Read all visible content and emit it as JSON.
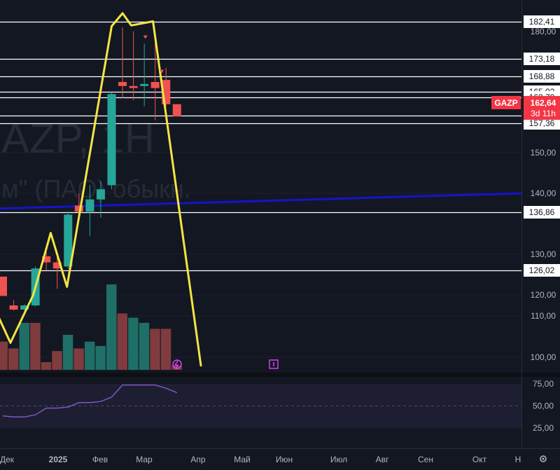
{
  "watermark": {
    "line1": "AZP, 1H",
    "line2": "м\" (ПАО) обыкн."
  },
  "symbol": {
    "ticker": "GAZP",
    "last_price": "162,64",
    "countdown": "3d 11h"
  },
  "colors": {
    "background": "#131722",
    "up": "#26a69a",
    "down": "#ef5350",
    "up_volume": "#1f6f67",
    "down_volume": "#7f3b3e",
    "horizontal_line": "#ffffff",
    "trend_line": "#1414cc",
    "drawing": "#f4e542",
    "rsi": "#7e57c2",
    "last_price_badge": "#f23645",
    "axis_text": "#b2b5be"
  },
  "chart_data": {
    "type": "candlestick",
    "x_axis_labels": [
      "Дек",
      "2025",
      "Фев",
      "Мар",
      "Апр",
      "Май",
      "Июн",
      "Июл",
      "Авг",
      "Сен",
      "Окт",
      "Н"
    ],
    "price_axis_ticks": [
      "180,00",
      "150,00",
      "140,00",
      "130,00",
      "120,00",
      "110,00",
      "100,00"
    ],
    "horizontal_levels": [
      "182,41",
      "173,18",
      "168,88",
      "165,02",
      "163,70",
      "159,12",
      "157,36",
      "136,86",
      "126,02"
    ],
    "trend_line": {
      "start": 137.5,
      "end": 140.0
    },
    "candles": [
      {
        "open": 124.5,
        "high": 124.5,
        "low": 119.5,
        "close": 119.5
      },
      {
        "open": 115.0,
        "high": 117.5,
        "low": 112.5,
        "close": 113.0
      },
      {
        "open": 113.0,
        "high": 115.5,
        "low": 110.5,
        "close": 115.0
      },
      {
        "open": 115.0,
        "high": 127.0,
        "low": 114.5,
        "close": 126.5
      },
      {
        "open": 129.5,
        "high": 130.5,
        "low": 126.0,
        "close": 128.0
      },
      {
        "open": 128.0,
        "high": 129.5,
        "low": 121.5,
        "close": 126.5
      },
      {
        "open": 127.0,
        "high": 137.0,
        "low": 126.5,
        "close": 136.5
      },
      {
        "open": 138.0,
        "high": 140.0,
        "low": 137.0,
        "close": 137.0
      },
      {
        "open": 137.0,
        "high": 142.0,
        "low": 133.0,
        "close": 139.0
      },
      {
        "open": 139.0,
        "high": 143.0,
        "low": 136.0,
        "close": 141.0
      },
      {
        "open": 142.0,
        "high": 165.0,
        "low": 141.0,
        "close": 164.5
      },
      {
        "open": 167.5,
        "high": 181.0,
        "low": 163.5,
        "close": 166.5
      },
      {
        "open": 166.5,
        "high": 180.0,
        "low": 163.0,
        "close": 166.0
      },
      {
        "open": 166.5,
        "high": 177.0,
        "low": 161.5,
        "close": 167.0
      },
      {
        "open": 167.5,
        "high": 178.0,
        "low": 158.0,
        "close": 166.0
      },
      {
        "open": 168.0,
        "high": 171.0,
        "low": 161.5,
        "close": 162.0
      },
      {
        "open": 162.0,
        "high": 162.0,
        "low": 159.0,
        "close": 159.0
      }
    ],
    "volume": [
      {
        "value": 0.33,
        "dir": "down"
      },
      {
        "value": 0.25,
        "dir": "down"
      },
      {
        "value": 0.55,
        "dir": "up"
      },
      {
        "value": 0.55,
        "dir": "down"
      },
      {
        "value": 0.09,
        "dir": "down"
      },
      {
        "value": 0.22,
        "dir": "down"
      },
      {
        "value": 0.41,
        "dir": "up"
      },
      {
        "value": 0.25,
        "dir": "down"
      },
      {
        "value": 0.33,
        "dir": "up"
      },
      {
        "value": 0.28,
        "dir": "up"
      },
      {
        "value": 1.0,
        "dir": "up"
      },
      {
        "value": 0.66,
        "dir": "down"
      },
      {
        "value": 0.61,
        "dir": "up"
      },
      {
        "value": 0.55,
        "dir": "up"
      },
      {
        "value": 0.48,
        "dir": "down"
      },
      {
        "value": 0.48,
        "dir": "down"
      },
      {
        "value": 0.05,
        "dir": "down"
      }
    ],
    "rsi": {
      "ticks": [
        "75,00",
        "50,00",
        "25,00"
      ],
      "levels": [
        70,
        50,
        30
      ],
      "values": [
        41,
        40,
        40,
        42,
        48,
        48,
        49,
        53,
        53,
        54,
        58,
        69,
        69,
        69,
        69,
        66,
        62
      ]
    },
    "drawing_path": [
      {
        "bar": -0.7,
        "price": 113.0
      },
      {
        "bar": 0.7,
        "price": 103.5
      },
      {
        "bar": 2.8,
        "price": 120.0
      },
      {
        "bar": 4.4,
        "price": 133.5
      },
      {
        "bar": 5.9,
        "price": 122.0
      },
      {
        "bar": 10.0,
        "price": 181.3
      },
      {
        "bar": 11.0,
        "price": 184.5
      },
      {
        "bar": 11.8,
        "price": 181.5
      },
      {
        "bar": 13.8,
        "price": 182.5
      },
      {
        "bar": 18.2,
        "price": 98.0
      }
    ],
    "markers": [
      {
        "bar": 13.1,
        "price": 178.5
      },
      {
        "bar": 14.6,
        "price": 170.0
      }
    ],
    "event_icons": [
      "flash-event",
      "ipo-event"
    ]
  }
}
